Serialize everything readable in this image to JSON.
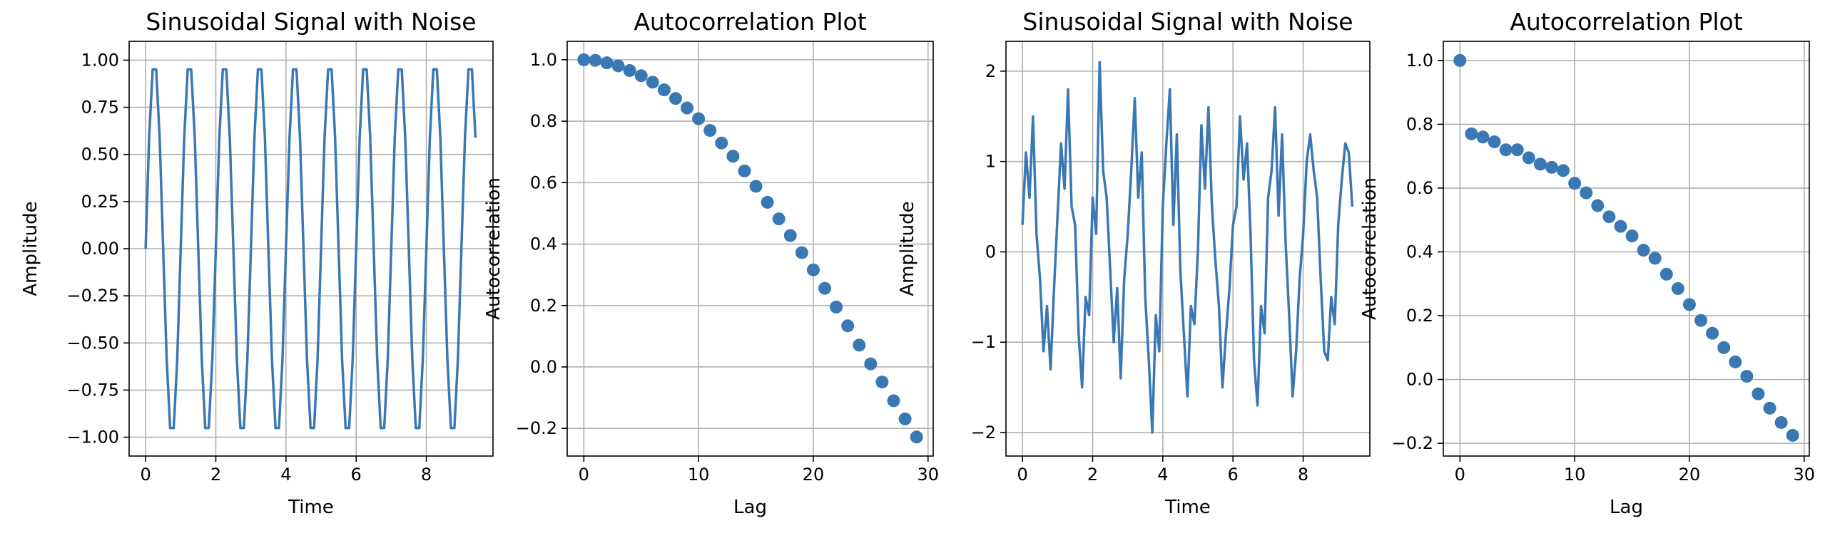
{
  "chart_data": [
    {
      "type": "line",
      "title": "Sinusoidal Signal with Noise",
      "xlabel": "Time",
      "ylabel": "Amplitude",
      "xlim": [
        -0.47,
        9.9
      ],
      "ylim": [
        -1.1,
        1.1
      ],
      "xticks": [
        0,
        2,
        4,
        6,
        8
      ],
      "xtick_labels": [
        "0",
        "2",
        "4",
        "6",
        "8"
      ],
      "yticks": [
        -1.0,
        -0.75,
        -0.5,
        -0.25,
        0.0,
        0.25,
        0.5,
        0.75,
        1.0
      ],
      "ytick_labels": [
        "−1.00",
        "−0.75",
        "−0.50",
        "−0.25",
        "0.00",
        "0.25",
        "0.50",
        "0.75",
        "1.00"
      ],
      "grid": true,
      "color": "#3a78b4",
      "series": [
        {
          "x": [
            0,
            0.1,
            0.2,
            0.3,
            0.4,
            0.5,
            0.6,
            0.7,
            0.8,
            0.9,
            1.0,
            1.1,
            1.2,
            1.3,
            1.4,
            1.5,
            1.6,
            1.7,
            1.8,
            1.9,
            2.0,
            2.1,
            2.2,
            2.3,
            2.4,
            2.5,
            2.6,
            2.7,
            2.8,
            2.9,
            3.0,
            3.1,
            3.2,
            3.3,
            3.4,
            3.5,
            3.6,
            3.7,
            3.8,
            3.9,
            4.0,
            4.1,
            4.2,
            4.3,
            4.4,
            4.5,
            4.6,
            4.7,
            4.8,
            4.9,
            5.0,
            5.1,
            5.2,
            5.3,
            5.4,
            5.5,
            5.6,
            5.7,
            5.8,
            5.9,
            6.0,
            6.1,
            6.2,
            6.3,
            6.4,
            6.5,
            6.6,
            6.7,
            6.8,
            6.9,
            7.0,
            7.1,
            7.2,
            7.3,
            7.4,
            7.5,
            7.6,
            7.7,
            7.8,
            7.9,
            8.0,
            8.1,
            8.2,
            8.3,
            8.4,
            8.5,
            8.6,
            8.7,
            8.8,
            8.9,
            9.0,
            9.1,
            9.2,
            9.3,
            9.4
          ],
          "y": [
            0,
            0.588,
            0.951,
            0.951,
            0.588,
            0,
            -0.588,
            -0.951,
            -0.951,
            -0.588,
            0,
            0.588,
            0.951,
            0.951,
            0.588,
            0,
            -0.588,
            -0.951,
            -0.951,
            -0.588,
            0,
            0.588,
            0.951,
            0.951,
            0.588,
            0,
            -0.588,
            -0.951,
            -0.951,
            -0.588,
            0,
            0.588,
            0.951,
            0.951,
            0.588,
            0,
            -0.588,
            -0.951,
            -0.951,
            -0.588,
            0,
            0.588,
            0.951,
            0.951,
            0.588,
            0,
            -0.588,
            -0.951,
            -0.951,
            -0.588,
            0,
            0.588,
            0.951,
            0.951,
            0.588,
            0,
            -0.588,
            -0.951,
            -0.951,
            -0.588,
            0,
            0.588,
            0.951,
            0.951,
            0.588,
            0,
            -0.588,
            -0.951,
            -0.951,
            -0.588,
            0,
            0.588,
            0.951,
            0.951,
            0.588,
            0,
            -0.588,
            -0.951,
            -0.951,
            -0.588,
            0,
            0.588,
            0.951,
            0.951,
            0.588,
            0,
            -0.588,
            -0.951,
            -0.951,
            -0.588,
            0,
            0.588,
            0.951,
            0.951,
            0.588
          ]
        }
      ]
    },
    {
      "type": "scatter",
      "title": "Autocorrelation Plot",
      "xlabel": "Lag",
      "ylabel": "Autocorrelation",
      "xlim": [
        -1.45,
        30.45
      ],
      "ylim": [
        -0.29,
        1.06
      ],
      "xticks": [
        0,
        10,
        20,
        30
      ],
      "xtick_labels": [
        "0",
        "10",
        "20",
        "30"
      ],
      "yticks": [
        -0.2,
        0.0,
        0.2,
        0.4,
        0.6,
        0.8,
        1.0
      ],
      "ytick_labels": [
        "−0.2",
        "0.0",
        "0.2",
        "0.4",
        "0.6",
        "0.8",
        "1.0"
      ],
      "grid": true,
      "color": "#3a78b4",
      "series": [
        {
          "x": [
            0,
            1,
            2,
            3,
            4,
            5,
            6,
            7,
            8,
            9,
            10,
            11,
            12,
            13,
            14,
            15,
            16,
            17,
            18,
            19,
            20,
            21,
            22,
            23,
            24,
            25,
            26,
            27,
            28,
            29
          ],
          "y": [
            1.0,
            0.998,
            0.99,
            0.98,
            0.965,
            0.948,
            0.927,
            0.902,
            0.874,
            0.843,
            0.808,
            0.77,
            0.729,
            0.686,
            0.638,
            0.588,
            0.536,
            0.482,
            0.428,
            0.372,
            0.316,
            0.256,
            0.195,
            0.134,
            0.071,
            0.01,
            -0.049,
            -0.11,
            -0.169,
            -0.228
          ]
        }
      ]
    },
    {
      "type": "line",
      "title": "Sinusoidal Signal with Noise",
      "xlabel": "Time",
      "ylabel": "Amplitude",
      "xlim": [
        -0.47,
        9.9
      ],
      "ylim": [
        -2.26,
        2.33
      ],
      "xticks": [
        0,
        2,
        4,
        6,
        8
      ],
      "xtick_labels": [
        "0",
        "2",
        "4",
        "6",
        "8"
      ],
      "yticks": [
        -2,
        -1,
        0,
        1,
        2
      ],
      "ytick_labels": [
        "−2",
        "−1",
        "0",
        "1",
        "2"
      ],
      "grid": true,
      "color": "#3a78b4",
      "series": [
        {
          "x": [
            0,
            0.1,
            0.2,
            0.3,
            0.4,
            0.5,
            0.6,
            0.7,
            0.8,
            0.9,
            1.0,
            1.1,
            1.2,
            1.3,
            1.4,
            1.5,
            1.6,
            1.7,
            1.8,
            1.9,
            2.0,
            2.1,
            2.2,
            2.3,
            2.4,
            2.5,
            2.6,
            2.7,
            2.8,
            2.9,
            3.0,
            3.1,
            3.2,
            3.3,
            3.4,
            3.5,
            3.6,
            3.7,
            3.8,
            3.9,
            4.0,
            4.1,
            4.2,
            4.3,
            4.4,
            4.5,
            4.6,
            4.7,
            4.8,
            4.9,
            5.0,
            5.1,
            5.2,
            5.3,
            5.4,
            5.5,
            5.6,
            5.7,
            5.8,
            5.9,
            6.0,
            6.1,
            6.2,
            6.3,
            6.4,
            6.5,
            6.6,
            6.7,
            6.8,
            6.9,
            7.0,
            7.1,
            7.2,
            7.3,
            7.4,
            7.5,
            7.6,
            7.7,
            7.8,
            7.9,
            8.0,
            8.1,
            8.2,
            8.3,
            8.4,
            8.5,
            8.6,
            8.7,
            8.8,
            8.9,
            9.0,
            9.1,
            9.2,
            9.3,
            9.4
          ],
          "y": [
            0.3,
            1.1,
            0.6,
            1.5,
            0.2,
            -0.3,
            -1.1,
            -0.6,
            -1.3,
            -0.4,
            0.4,
            1.2,
            0.7,
            1.8,
            0.5,
            0.3,
            -0.9,
            -1.5,
            -0.5,
            -0.7,
            0.6,
            0.2,
            2.1,
            0.9,
            0.6,
            -0.2,
            -1.0,
            -0.4,
            -1.4,
            -0.3,
            0.2,
            0.9,
            1.7,
            0.6,
            1.1,
            -0.5,
            -1.2,
            -2.0,
            -0.7,
            -1.1,
            0.5,
            1.2,
            1.8,
            0.3,
            1.3,
            -0.2,
            -0.9,
            -1.6,
            -0.6,
            -0.8,
            0.0,
            1.4,
            0.7,
            1.6,
            0.5,
            -0.1,
            -0.6,
            -1.5,
            -0.9,
            -0.4,
            0.3,
            0.5,
            1.5,
            0.8,
            1.2,
            0.2,
            -1.2,
            -1.7,
            -0.6,
            -0.9,
            0.6,
            0.9,
            1.6,
            0.4,
            1.3,
            0.1,
            -0.7,
            -1.6,
            -1.1,
            -0.3,
            0.2,
            1.0,
            1.3,
            0.9,
            0.6,
            -0.3,
            -1.1,
            -1.2,
            -0.5,
            -0.8,
            0.3,
            0.8,
            1.2,
            1.1,
            0.5
          ]
        }
      ]
    },
    {
      "type": "scatter",
      "title": "Autocorrelation Plot",
      "xlabel": "Lag",
      "ylabel": "Autocorrelation",
      "xlim": [
        -1.45,
        30.45
      ],
      "ylim": [
        -0.24,
        1.06
      ],
      "xticks": [
        0,
        10,
        20,
        30
      ],
      "xtick_labels": [
        "0",
        "10",
        "20",
        "30"
      ],
      "yticks": [
        -0.2,
        0.0,
        0.2,
        0.4,
        0.6,
        0.8,
        1.0
      ],
      "ytick_labels": [
        "−0.2",
        "0.0",
        "0.2",
        "0.4",
        "0.6",
        "0.8",
        "1.0"
      ],
      "grid": true,
      "color": "#3a78b4",
      "series": [
        {
          "x": [
            0,
            1,
            2,
            3,
            4,
            5,
            6,
            7,
            8,
            9,
            10,
            11,
            12,
            13,
            14,
            15,
            16,
            17,
            18,
            19,
            20,
            21,
            22,
            23,
            24,
            25,
            26,
            27,
            28,
            29
          ],
          "y": [
            1.0,
            0.77,
            0.76,
            0.745,
            0.72,
            0.72,
            0.695,
            0.675,
            0.665,
            0.655,
            0.615,
            0.585,
            0.545,
            0.51,
            0.48,
            0.45,
            0.405,
            0.38,
            0.33,
            0.285,
            0.235,
            0.185,
            0.145,
            0.1,
            0.055,
            0.01,
            -0.045,
            -0.09,
            -0.135,
            -0.175
          ]
        }
      ]
    }
  ]
}
